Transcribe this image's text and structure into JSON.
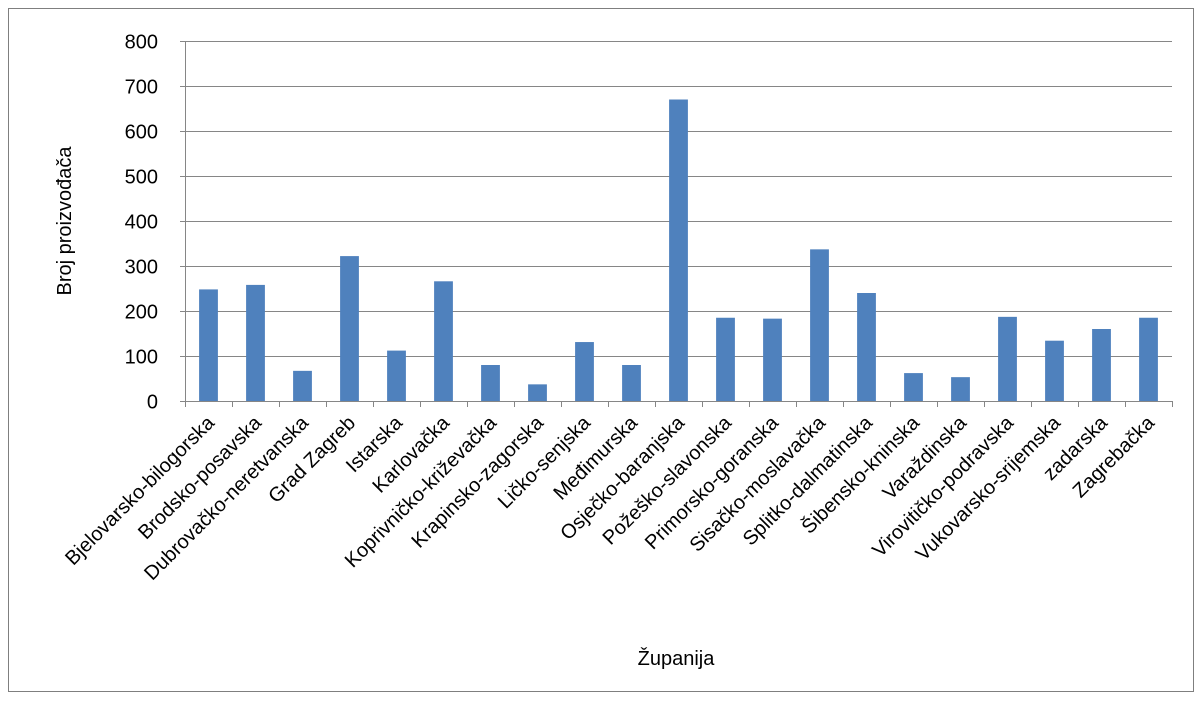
{
  "chart_data": {
    "type": "bar",
    "xlabel": "Županija",
    "ylabel": "Broj proizvođača",
    "ylim": [
      0,
      800
    ],
    "yticks": [
      0,
      100,
      200,
      300,
      400,
      500,
      600,
      700,
      800
    ],
    "grid": true,
    "legend": "none",
    "bar_color": "#4F81BD",
    "categories": [
      "Bjelovarsko-bilogorska",
      "Brodsko-posavska",
      "Dubrovačko-neretvanska",
      "Grad Zagreb",
      "Istarska",
      "Karlovačka",
      "Koprivničko-križevačka",
      "Krapinsko-zagorska",
      "Ličko-senjska",
      "Međimurska",
      "Osječko-baranjska",
      "Požeško-slavonska",
      "Primorsko-goranska",
      "Sisačko-moslavačka",
      "Splitko-dalmatinska",
      "Šibensko-kninska",
      "Varaždinska",
      "Virovitičko-podravska",
      "Vukovarsko-srijemska",
      "zadarska",
      "Zagrebačka"
    ],
    "values": [
      248,
      258,
      67,
      322,
      112,
      266,
      80,
      37,
      131,
      80,
      670,
      185,
      183,
      337,
      240,
      62,
      53,
      187,
      134,
      160,
      185
    ]
  }
}
